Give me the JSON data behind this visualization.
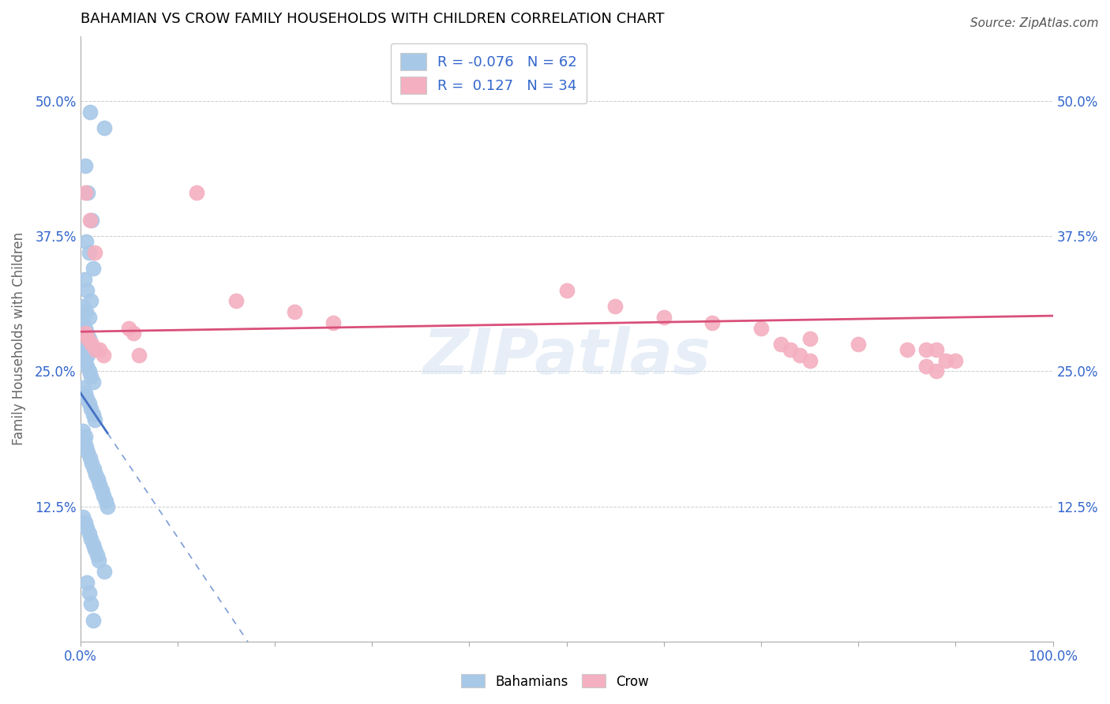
{
  "title": "BAHAMIAN VS CROW FAMILY HOUSEHOLDS WITH CHILDREN CORRELATION CHART",
  "source": "Source: ZipAtlas.com",
  "ylabel": "Family Households with Children",
  "bahamian_R": -0.076,
  "bahamian_N": 62,
  "crow_R": 0.127,
  "crow_N": 34,
  "bahamian_color": "#a8c8e8",
  "crow_color": "#f4b0c0",
  "bahamian_line_color": "#4472c4",
  "crow_line_color": "#d94f7a",
  "background_color": "#ffffff",
  "grid_color": "#cccccc",
  "xlim": [
    0.0,
    1.0
  ],
  "ylim": [
    0.0,
    0.56
  ],
  "ytick_vals": [
    0.125,
    0.25,
    0.375,
    0.5
  ],
  "ytick_labels": [
    "12.5%",
    "25.0%",
    "37.5%",
    "50.0%"
  ],
  "legend_color": "#3366cc",
  "title_fontsize": 13,
  "bahamian_x": [
    0.01,
    0.025,
    0.005,
    0.008,
    0.012,
    0.006,
    0.009,
    0.013,
    0.004,
    0.007,
    0.011,
    0.003,
    0.006,
    0.009,
    0.003,
    0.005,
    0.007,
    0.009,
    0.004,
    0.006,
    0.008,
    0.005,
    0.007,
    0.009,
    0.011,
    0.013,
    0.003,
    0.005,
    0.007,
    0.009,
    0.011,
    0.013,
    0.015,
    0.003,
    0.005,
    0.004,
    0.006,
    0.008,
    0.01,
    0.012,
    0.014,
    0.016,
    0.018,
    0.02,
    0.022,
    0.024,
    0.026,
    0.028,
    0.003,
    0.005,
    0.007,
    0.009,
    0.011,
    0.013,
    0.015,
    0.017,
    0.019,
    0.025,
    0.007,
    0.009,
    0.011,
    0.013
  ],
  "bahamian_y": [
    0.49,
    0.475,
    0.44,
    0.415,
    0.39,
    0.37,
    0.36,
    0.345,
    0.335,
    0.325,
    0.315,
    0.31,
    0.305,
    0.3,
    0.295,
    0.29,
    0.285,
    0.28,
    0.275,
    0.27,
    0.265,
    0.26,
    0.255,
    0.25,
    0.245,
    0.24,
    0.235,
    0.23,
    0.225,
    0.22,
    0.215,
    0.21,
    0.205,
    0.195,
    0.19,
    0.185,
    0.18,
    0.175,
    0.17,
    0.165,
    0.16,
    0.155,
    0.15,
    0.145,
    0.14,
    0.135,
    0.13,
    0.125,
    0.115,
    0.11,
    0.105,
    0.1,
    0.095,
    0.09,
    0.085,
    0.08,
    0.075,
    0.065,
    0.055,
    0.045,
    0.035,
    0.02
  ],
  "crow_x": [
    0.005,
    0.01,
    0.015,
    0.12,
    0.16,
    0.22,
    0.26,
    0.005,
    0.008,
    0.012,
    0.016,
    0.02,
    0.024,
    0.05,
    0.055,
    0.06,
    0.5,
    0.55,
    0.6,
    0.65,
    0.7,
    0.75,
    0.8,
    0.85,
    0.87,
    0.88,
    0.89,
    0.9,
    0.87,
    0.88,
    0.72,
    0.73,
    0.74,
    0.75
  ],
  "crow_y": [
    0.415,
    0.39,
    0.36,
    0.415,
    0.315,
    0.305,
    0.295,
    0.285,
    0.28,
    0.275,
    0.27,
    0.27,
    0.265,
    0.29,
    0.285,
    0.265,
    0.325,
    0.31,
    0.3,
    0.295,
    0.29,
    0.28,
    0.275,
    0.27,
    0.27,
    0.27,
    0.26,
    0.26,
    0.255,
    0.25,
    0.275,
    0.27,
    0.265,
    0.26
  ]
}
